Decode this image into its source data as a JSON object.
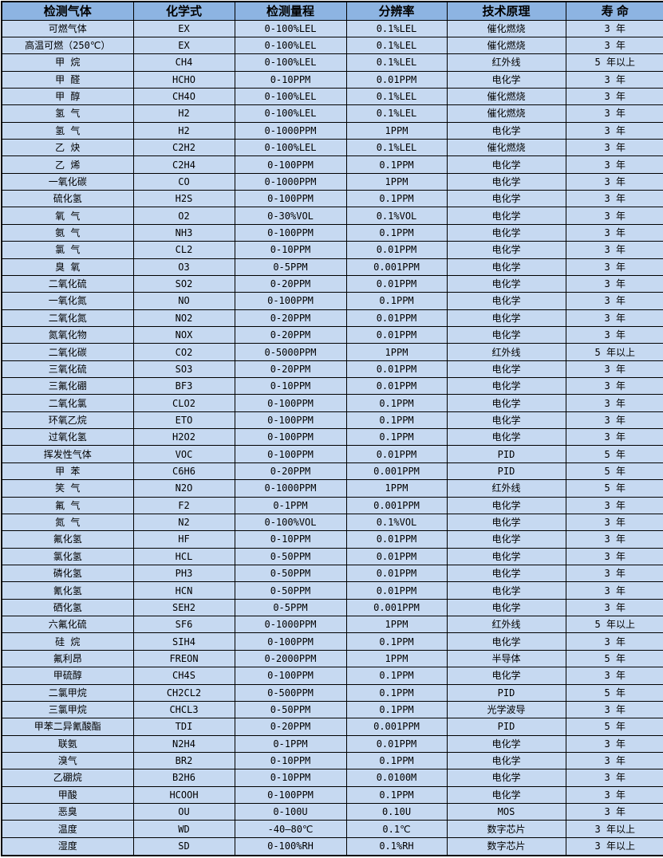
{
  "table": {
    "columns": [
      "检测气体",
      "化学式",
      "检测量程",
      "分辨率",
      "技术原理",
      "寿 命"
    ],
    "rows": [
      [
        "可燃气体",
        "EX",
        "0-100%LEL",
        "0.1%LEL",
        "催化燃烧",
        "3 年"
      ],
      [
        "高温可燃（250℃）",
        "EX",
        "0-100%LEL",
        "0.1%LEL",
        "催化燃烧",
        "3 年"
      ],
      [
        "甲 烷",
        "CH4",
        "0-100%LEL",
        "0.1%LEL",
        "红外线",
        "5 年以上"
      ],
      [
        "甲 醛",
        "HCHO",
        "0-10PPM",
        "0.01PPM",
        "电化学",
        "3 年"
      ],
      [
        "甲 醇",
        "CH4O",
        "0-100%LEL",
        "0.1%LEL",
        "催化燃烧",
        "3 年"
      ],
      [
        "氢 气",
        "H2",
        "0-100%LEL",
        "0.1%LEL",
        "催化燃烧",
        "3 年"
      ],
      [
        "氢 气",
        "H2",
        "0-1000PPM",
        "1PPM",
        "电化学",
        "3 年"
      ],
      [
        "乙 炔",
        "C2H2",
        "0-100%LEL",
        "0.1%LEL",
        "催化燃烧",
        "3 年"
      ],
      [
        "乙 烯",
        "C2H4",
        "0-100PPM",
        "0.1PPM",
        "电化学",
        "3 年"
      ],
      [
        "一氧化碳",
        "CO",
        "0-1000PPM",
        "1PPM",
        "电化学",
        "3 年"
      ],
      [
        "硫化氢",
        "H2S",
        "0-100PPM",
        "0.1PPM",
        "电化学",
        "3 年"
      ],
      [
        "氧 气",
        "O2",
        "0-30%VOL",
        "0.1%VOL",
        "电化学",
        "3 年"
      ],
      [
        "氨 气",
        "NH3",
        "0-100PPM",
        "0.1PPM",
        "电化学",
        "3 年"
      ],
      [
        "氯 气",
        "CL2",
        "0-10PPM",
        "0.01PPM",
        "电化学",
        "3 年"
      ],
      [
        "臭 氧",
        "O3",
        "0-5PPM",
        "0.001PPM",
        "电化学",
        "3 年"
      ],
      [
        "二氧化硫",
        "SO2",
        "0-20PPM",
        "0.01PPM",
        "电化学",
        "3 年"
      ],
      [
        "一氧化氮",
        "NO",
        "0-100PPM",
        "0.1PPM",
        "电化学",
        "3 年"
      ],
      [
        "二氧化氮",
        "NO2",
        "0-20PPM",
        "0.01PPM",
        "电化学",
        "3 年"
      ],
      [
        "氮氧化物",
        "NOX",
        "0-20PPM",
        "0.01PPM",
        "电化学",
        "3 年"
      ],
      [
        "二氧化碳",
        "CO2",
        "0-5000PPM",
        "1PPM",
        "红外线",
        "5 年以上"
      ],
      [
        "三氧化硫",
        "SO3",
        "0-20PPM",
        "0.01PPM",
        "电化学",
        "3 年"
      ],
      [
        "三氟化硼",
        "BF3",
        "0-10PPM",
        "0.01PPM",
        "电化学",
        "3 年"
      ],
      [
        "二氧化氯",
        "CLO2",
        "0-100PPM",
        "0.1PPM",
        "电化学",
        "3 年"
      ],
      [
        "环氧乙烷",
        "ETO",
        "0-100PPM",
        "0.1PPM",
        "电化学",
        "3 年"
      ],
      [
        "过氧化氢",
        "H2O2",
        "0-100PPM",
        "0.1PPM",
        "电化学",
        "3 年"
      ],
      [
        "挥发性气体",
        "VOC",
        "0-100PPM",
        "0.01PPM",
        "PID",
        "5 年"
      ],
      [
        "甲 苯",
        "C6H6",
        "0-20PPM",
        "0.001PPM",
        "PID",
        "5 年"
      ],
      [
        "笑 气",
        "N2O",
        "0-1000PPM",
        "1PPM",
        "红外线",
        "5 年"
      ],
      [
        "氟 气",
        "F2",
        "0-1PPM",
        "0.001PPM",
        "电化学",
        "3 年"
      ],
      [
        "氮 气",
        "N2",
        "0-100%VOL",
        "0.1%VOL",
        "电化学",
        "3 年"
      ],
      [
        "氟化氢",
        "HF",
        "0-10PPM",
        "0.01PPM",
        "电化学",
        "3 年"
      ],
      [
        "氯化氢",
        "HCL",
        "0-50PPM",
        "0.01PPM",
        "电化学",
        "3 年"
      ],
      [
        "磷化氢",
        "PH3",
        "0-50PPM",
        "0.01PPM",
        "电化学",
        "3 年"
      ],
      [
        "氰化氢",
        "HCN",
        "0-50PPM",
        "0.01PPM",
        "电化学",
        "3 年"
      ],
      [
        "硒化氢",
        "SEH2",
        "0-5PPM",
        "0.001PPM",
        "电化学",
        "3 年"
      ],
      [
        "六氟化硫",
        "SF6",
        "0-1000PPM",
        "1PPM",
        "红外线",
        "5 年以上"
      ],
      [
        "硅 烷",
        "SIH4",
        "0-100PPM",
        "0.1PPM",
        "电化学",
        "3 年"
      ],
      [
        "氟利昂",
        "FREON",
        "0-2000PPM",
        "1PPM",
        "半导体",
        "5 年"
      ],
      [
        "甲硫醇",
        "CH4S",
        "0-100PPM",
        "0.1PPM",
        "电化学",
        "3 年"
      ],
      [
        "二氯甲烷",
        "CH2CL2",
        "0-500PPM",
        "0.1PPM",
        "PID",
        "5 年"
      ],
      [
        "三氯甲烷",
        "CHCL3",
        "0-50PPM",
        "0.1PPM",
        "光学波导",
        "3 年"
      ],
      [
        "甲苯二异氰酸酯",
        "TDI",
        "0-20PPM",
        "0.001PPM",
        "PID",
        "5 年"
      ],
      [
        "联氨",
        "N2H4",
        "0-1PPM",
        "0.01PPM",
        "电化学",
        "3 年"
      ],
      [
        "溴气",
        "BR2",
        "0-10PPM",
        "0.1PPM",
        "电化学",
        "3 年"
      ],
      [
        "乙硼烷",
        "B2H6",
        "0-10PPM",
        "0.0100M",
        "电化学",
        "3 年"
      ],
      [
        "甲酸",
        "HCOOH",
        "0-100PPM",
        "0.1PPM",
        "电化学",
        "3 年"
      ],
      [
        "恶臭",
        "OU",
        "0-100U",
        "0.10U",
        "MOS",
        "3 年"
      ],
      [
        "温度",
        "WD",
        "-40—80℃",
        "0.1℃",
        "数字芯片",
        "3 年以上"
      ],
      [
        "湿度",
        "SD",
        "0-100%RH",
        "0.1%RH",
        "数字芯片",
        "3 年以上"
      ]
    ]
  },
  "colors": {
    "header_bg": "#8DB4E2",
    "row_bg": "#C6D9F1",
    "border": "#000000",
    "text": "#000000"
  }
}
